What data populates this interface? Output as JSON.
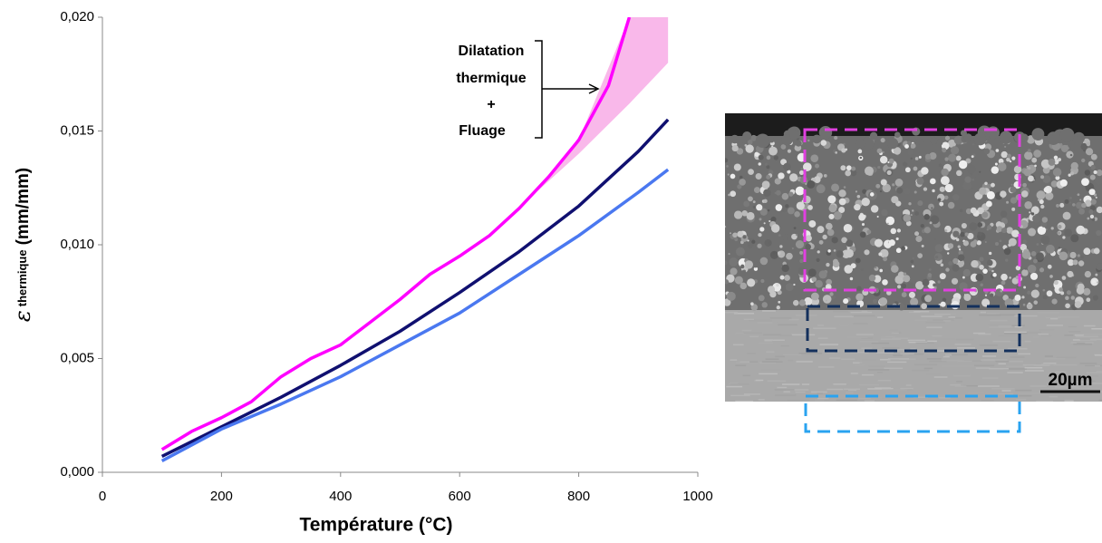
{
  "chart_data": {
    "type": "line",
    "x_label": "Température (°C)",
    "y_label": {
      "symbol": "ε",
      "subscript": "thermique",
      "unit": "(mm/mm)"
    },
    "xlim": [
      0,
      1000
    ],
    "xticks": [
      0,
      200,
      400,
      600,
      800,
      1000
    ],
    "ylim": [
      0,
      0.02
    ],
    "yticks": [
      {
        "value": 0,
        "label": "0,000"
      },
      {
        "value": 0.005,
        "label": "0,005"
      },
      {
        "value": 0.01,
        "label": "0,010"
      },
      {
        "value": 0.015,
        "label": "0,015"
      },
      {
        "value": 0.02,
        "label": "0,020"
      }
    ],
    "series": [
      {
        "color": "#ff00ff",
        "x": [
          100,
          150,
          200,
          250,
          300,
          350,
          400,
          450,
          500,
          550,
          600,
          650,
          700,
          750,
          800,
          850,
          885
        ],
        "values": [
          0.001,
          0.0018,
          0.0024,
          0.0031,
          0.0042,
          0.005,
          0.0056,
          0.0066,
          0.0076,
          0.0087,
          0.0095,
          0.0104,
          0.0116,
          0.013,
          0.0146,
          0.017,
          0.02
        ]
      },
      {
        "color": "#101070",
        "x": [
          100,
          200,
          300,
          400,
          500,
          600,
          700,
          800,
          900,
          950
        ],
        "values": [
          0.0007,
          0.002,
          0.0033,
          0.0047,
          0.0062,
          0.0079,
          0.0097,
          0.0117,
          0.0141,
          0.0155
        ]
      },
      {
        "color": "#4a78f0",
        "x": [
          100,
          200,
          300,
          400,
          500,
          600,
          700,
          800,
          900,
          950
        ],
        "values": [
          0.0005,
          0.0019,
          0.003,
          0.0042,
          0.0056,
          0.007,
          0.0087,
          0.0104,
          0.0123,
          0.0133
        ]
      }
    ],
    "band": {
      "color": "#f9b8ea",
      "x": [
        720,
        800,
        885,
        950
      ],
      "upper": [
        0.0121,
        0.0146,
        0.02,
        0.02
      ],
      "lower": [
        0.0121,
        0.014,
        0.0162,
        0.018
      ]
    },
    "annotation": [
      "Dilatation",
      "thermique",
      "+",
      "Fluage"
    ]
  },
  "image": {
    "scale_label": "20µm"
  }
}
